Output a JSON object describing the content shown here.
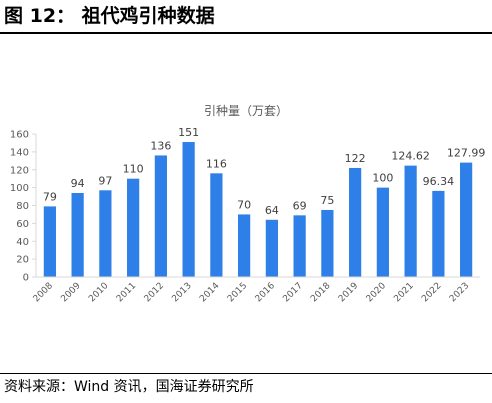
{
  "header": {
    "title": "图 12：  祖代鸡引种数据"
  },
  "source": {
    "text": "资料来源：Wind 资讯，国海证券研究所"
  },
  "colors": {
    "bar": "#2E7FE8",
    "axis": "#d9d9d9",
    "grid": "#d9d9d9",
    "label": "#404040",
    "tick": "#595959"
  },
  "chart_data": {
    "type": "bar",
    "title": "引种量（万套）",
    "xlabel": "",
    "ylabel": "",
    "grid": false,
    "legend": "none",
    "ylim": [
      0,
      160
    ],
    "yticks": [
      0,
      20,
      40,
      60,
      80,
      100,
      120,
      140,
      160
    ],
    "categories": [
      "2008",
      "2009",
      "2010",
      "2011",
      "2012",
      "2013",
      "2014",
      "2015",
      "2016",
      "2017",
      "2018",
      "2019",
      "2020",
      "2021",
      "2022",
      "2023"
    ],
    "values": [
      79,
      94,
      97,
      110,
      136,
      151,
      116,
      70,
      64,
      69,
      75,
      122,
      100,
      124.62,
      96.34,
      127.99
    ],
    "data_labels": [
      "79",
      "94",
      "97",
      "110",
      "136",
      "151",
      "116",
      "70",
      "64",
      "69",
      "75",
      "122",
      "100",
      "124.62",
      "96.34",
      "127.99"
    ]
  }
}
